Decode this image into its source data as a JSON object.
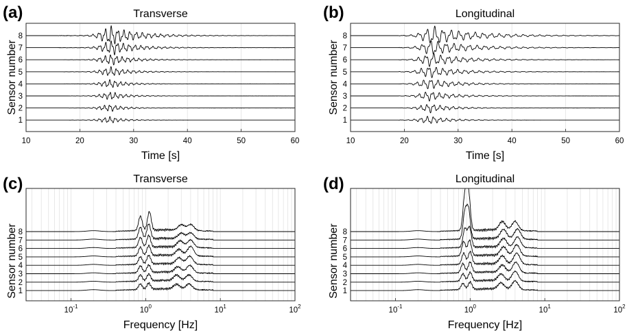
{
  "chart_data": [
    {
      "id": "a",
      "type": "line",
      "panel_label": "(a)",
      "title": "Transverse",
      "xlabel": "Time [s]",
      "ylabel": "Sensor number",
      "x_scale": "linear",
      "xlim": [
        10,
        60
      ],
      "x_ticks": [
        10,
        20,
        30,
        40,
        50,
        60
      ],
      "x_tick_labels": [
        "10",
        "20",
        "30",
        "40",
        "50",
        "60"
      ],
      "y_ticks": [
        "1",
        "2",
        "3",
        "4",
        "5",
        "6",
        "7",
        "8"
      ],
      "grid": true,
      "series": [
        {
          "sensor": 1,
          "amplitude": 0.33,
          "onset_s": 18,
          "peak_s": 25.8,
          "dominant_period_s": 1.0,
          "decay_s": 3.0,
          "end_s": 60
        },
        {
          "sensor": 2,
          "amplitude": 0.36,
          "onset_s": 18,
          "peak_s": 25.8,
          "dominant_period_s": 1.0,
          "decay_s": 3.2,
          "end_s": 60
        },
        {
          "sensor": 3,
          "amplitude": 0.4,
          "onset_s": 18,
          "peak_s": 26.0,
          "dominant_period_s": 1.0,
          "decay_s": 3.4,
          "end_s": 60
        },
        {
          "sensor": 4,
          "amplitude": 0.42,
          "onset_s": 17,
          "peak_s": 26.0,
          "dominant_period_s": 1.0,
          "decay_s": 3.6,
          "end_s": 60
        },
        {
          "sensor": 5,
          "amplitude": 0.48,
          "onset_s": 17,
          "peak_s": 26.0,
          "dominant_period_s": 1.05,
          "decay_s": 4.0,
          "end_s": 60
        },
        {
          "sensor": 6,
          "amplitude": 0.55,
          "onset_s": 17,
          "peak_s": 26.0,
          "dominant_period_s": 1.05,
          "decay_s": 4.5,
          "end_s": 60
        },
        {
          "sensor": 7,
          "amplitude": 0.75,
          "onset_s": 16,
          "peak_s": 26.2,
          "dominant_period_s": 1.1,
          "decay_s": 5.0,
          "end_s": 60
        },
        {
          "sensor": 8,
          "amplitude": 0.95,
          "onset_s": 16,
          "peak_s": 26.0,
          "dominant_period_s": 1.15,
          "decay_s": 6.0,
          "end_s": 60
        }
      ]
    },
    {
      "id": "b",
      "type": "line",
      "panel_label": "(b)",
      "title": "Longitudinal",
      "xlabel": "Time [s]",
      "ylabel": "Sensor number",
      "x_scale": "linear",
      "xlim": [
        10,
        60
      ],
      "x_ticks": [
        10,
        20,
        30,
        40,
        50,
        60
      ],
      "x_tick_labels": [
        "10",
        "20",
        "30",
        "40",
        "50",
        "60"
      ],
      "y_ticks": [
        "1",
        "2",
        "3",
        "4",
        "5",
        "6",
        "7",
        "8"
      ],
      "grid": true,
      "series": [
        {
          "sensor": 1,
          "amplitude": 0.42,
          "onset_s": 19,
          "peak_s": 25.0,
          "dominant_period_s": 1.2,
          "decay_s": 4.0,
          "end_s": 60
        },
        {
          "sensor": 2,
          "amplitude": 0.45,
          "onset_s": 19,
          "peak_s": 25.0,
          "dominant_period_s": 1.2,
          "decay_s": 4.5,
          "end_s": 60
        },
        {
          "sensor": 3,
          "amplitude": 0.5,
          "onset_s": 19,
          "peak_s": 25.0,
          "dominant_period_s": 1.25,
          "decay_s": 5.0,
          "end_s": 60
        },
        {
          "sensor": 4,
          "amplitude": 0.55,
          "onset_s": 19,
          "peak_s": 25.0,
          "dominant_period_s": 1.3,
          "decay_s": 5.5,
          "end_s": 60
        },
        {
          "sensor": 5,
          "amplitude": 0.62,
          "onset_s": 19,
          "peak_s": 25.0,
          "dominant_period_s": 1.35,
          "decay_s": 6.0,
          "end_s": 60
        },
        {
          "sensor": 6,
          "amplitude": 0.7,
          "onset_s": 19,
          "peak_s": 25.2,
          "dominant_period_s": 1.4,
          "decay_s": 6.5,
          "end_s": 60
        },
        {
          "sensor": 7,
          "amplitude": 0.82,
          "onset_s": 19,
          "peak_s": 25.5,
          "dominant_period_s": 1.45,
          "decay_s": 7.5,
          "end_s": 60
        },
        {
          "sensor": 8,
          "amplitude": 0.98,
          "onset_s": 19,
          "peak_s": 25.5,
          "dominant_period_s": 1.5,
          "decay_s": 8.5,
          "end_s": 60
        }
      ]
    },
    {
      "id": "c",
      "type": "line",
      "panel_label": "(c)",
      "title": "Transverse",
      "xlabel": "Frequency [Hz]",
      "ylabel": "Sensor number",
      "x_scale": "log",
      "xlim": [
        0.025,
        100
      ],
      "x_ticks": [
        0.1,
        1,
        10,
        100
      ],
      "x_tick_labels": [
        {
          "base": "10",
          "exp": "-1"
        },
        {
          "base": "10",
          "exp": "0"
        },
        {
          "base": "10",
          "exp": "1"
        },
        {
          "base": "10",
          "exp": "2"
        }
      ],
      "y_ticks": [
        "1",
        "2",
        "3",
        "4",
        "5",
        "6",
        "7",
        "8"
      ],
      "grid": true,
      "series": [
        {
          "sensor": 1,
          "peaks_hz": [
            0.85,
            1.1,
            2.6,
            3.8
          ],
          "peak_amplitudes": [
            0.9,
            1.0,
            0.8,
            0.9
          ],
          "end_hz": 10
        },
        {
          "sensor": 2,
          "peaks_hz": [
            0.85,
            1.1,
            2.6,
            3.8
          ],
          "peak_amplitudes": [
            1.0,
            1.1,
            0.9,
            1.0
          ],
          "end_hz": 10
        },
        {
          "sensor": 3,
          "peaks_hz": [
            0.85,
            1.1,
            2.7,
            3.9
          ],
          "peak_amplitudes": [
            1.1,
            1.2,
            0.9,
            1.2
          ],
          "end_hz": 10
        },
        {
          "sensor": 4,
          "peaks_hz": [
            0.85,
            1.1,
            2.8,
            3.9
          ],
          "peak_amplitudes": [
            1.2,
            1.4,
            1.0,
            1.3
          ],
          "end_hz": 10
        },
        {
          "sensor": 5,
          "peaks_hz": [
            0.85,
            1.1,
            2.8,
            4.0
          ],
          "peak_amplitudes": [
            1.4,
            1.6,
            1.0,
            1.5
          ],
          "end_hz": 10
        },
        {
          "sensor": 6,
          "peaks_hz": [
            0.85,
            1.1,
            2.9,
            4.0
          ],
          "peak_amplitudes": [
            1.6,
            1.9,
            1.0,
            1.2
          ],
          "end_hz": 10
        },
        {
          "sensor": 7,
          "peaks_hz": [
            0.85,
            1.1,
            3.0,
            4.0
          ],
          "peak_amplitudes": [
            1.9,
            2.4,
            0.9,
            1.0
          ],
          "end_hz": 10
        },
        {
          "sensor": 8,
          "peaks_hz": [
            0.85,
            1.12,
            3.0,
            4.0
          ],
          "peak_amplitudes": [
            2.3,
            3.0,
            0.9,
            1.0
          ],
          "end_hz": 10
        }
      ]
    },
    {
      "id": "d",
      "type": "line",
      "panel_label": "(d)",
      "title": "Longitudinal",
      "xlabel": "Frequency [Hz]",
      "ylabel": "Sensor number",
      "x_scale": "log",
      "xlim": [
        0.025,
        100
      ],
      "x_ticks": [
        0.1,
        1,
        10,
        100
      ],
      "x_tick_labels": [
        {
          "base": "10",
          "exp": "-1"
        },
        {
          "base": "10",
          "exp": "0"
        },
        {
          "base": "10",
          "exp": "1"
        },
        {
          "base": "10",
          "exp": "2"
        }
      ],
      "y_ticks": [
        "1",
        "2",
        "3",
        "4",
        "5",
        "6",
        "7",
        "8"
      ],
      "grid": true,
      "series": [
        {
          "sensor": 1,
          "peaks_hz": [
            0.8,
            1.0,
            2.6,
            4.0
          ],
          "peak_amplitudes": [
            1.0,
            1.2,
            1.0,
            1.4
          ],
          "end_hz": 10
        },
        {
          "sensor": 2,
          "peaks_hz": [
            0.8,
            1.0,
            2.6,
            4.0
          ],
          "peak_amplitudes": [
            1.2,
            1.4,
            1.1,
            1.6
          ],
          "end_hz": 10
        },
        {
          "sensor": 3,
          "peaks_hz": [
            0.8,
            1.0,
            2.7,
            4.1
          ],
          "peak_amplitudes": [
            1.5,
            1.7,
            1.2,
            1.7
          ],
          "end_hz": 10
        },
        {
          "sensor": 4,
          "peaks_hz": [
            0.82,
            1.0,
            2.7,
            4.2
          ],
          "peak_amplitudes": [
            1.8,
            2.0,
            1.3,
            1.8
          ],
          "end_hz": 10
        },
        {
          "sensor": 5,
          "peaks_hz": [
            0.82,
            0.98,
            2.8,
            4.2
          ],
          "peak_amplitudes": [
            2.3,
            2.5,
            1.4,
            1.8
          ],
          "end_hz": 10
        },
        {
          "sensor": 6,
          "peaks_hz": [
            0.85,
            0.98,
            2.8,
            4.3
          ],
          "peak_amplitudes": [
            3.0,
            3.2,
            1.4,
            1.7
          ],
          "end_hz": 10
        },
        {
          "sensor": 7,
          "peaks_hz": [
            0.85,
            0.95,
            2.8,
            4.3
          ],
          "peak_amplitudes": [
            4.2,
            4.6,
            1.5,
            1.6
          ],
          "end_hz": 10
        },
        {
          "sensor": 8,
          "peaks_hz": [
            0.85,
            0.95,
            2.7,
            4.0
          ],
          "peak_amplitudes": [
            5.6,
            6.0,
            1.4,
            1.5
          ],
          "end_hz": 10
        }
      ]
    }
  ]
}
